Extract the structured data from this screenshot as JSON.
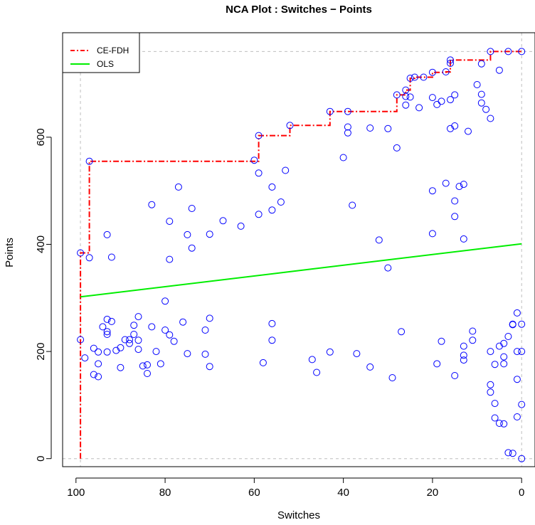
{
  "chart_data": {
    "type": "scatter",
    "title": "NCA Plot : Switches − Points",
    "xlabel": "Switches",
    "ylabel": "Points",
    "xlim": [
      103,
      -3
    ],
    "ylim": [
      -15,
      795
    ],
    "x_reversed": true,
    "x_ticks": [
      100,
      80,
      60,
      40,
      20,
      0
    ],
    "y_ticks": [
      0,
      200,
      400,
      600
    ],
    "grid": false,
    "reference_lines": {
      "x": [
        99,
        0
      ],
      "y": [
        0,
        760
      ]
    },
    "legend": {
      "position": "top-left",
      "entries": [
        "CE-FDH",
        "OLS"
      ]
    },
    "colors": {
      "points": "#0000ff",
      "ce_fdh": "#ff0000",
      "ols": "#00ee00",
      "reference": "#bebebe"
    },
    "series": [
      {
        "name": "",
        "kind": "points",
        "points": [
          [
            99,
            384
          ],
          [
            99,
            222
          ],
          [
            97,
            555
          ],
          [
            97,
            375
          ],
          [
            98,
            188
          ],
          [
            93,
            418
          ],
          [
            92,
            376
          ],
          [
            96,
            206
          ],
          [
            96,
            157
          ],
          [
            95,
            153
          ],
          [
            95,
            177
          ],
          [
            95,
            199
          ],
          [
            94,
            246
          ],
          [
            93,
            260
          ],
          [
            93,
            237
          ],
          [
            93,
            232
          ],
          [
            92,
            256
          ],
          [
            93,
            199
          ],
          [
            91,
            202
          ],
          [
            90,
            170
          ],
          [
            90,
            207
          ],
          [
            89,
            222
          ],
          [
            88,
            222
          ],
          [
            88,
            215
          ],
          [
            87,
            232
          ],
          [
            87,
            249
          ],
          [
            86,
            265
          ],
          [
            86,
            221
          ],
          [
            86,
            204
          ],
          [
            85,
            173
          ],
          [
            84,
            175
          ],
          [
            84,
            159
          ],
          [
            83,
            246
          ],
          [
            83,
            474
          ],
          [
            82,
            200
          ],
          [
            81,
            177
          ],
          [
            80,
            294
          ],
          [
            80,
            240
          ],
          [
            79,
            231
          ],
          [
            79,
            443
          ],
          [
            79,
            372
          ],
          [
            78,
            219
          ],
          [
            77,
            507
          ],
          [
            76,
            255
          ],
          [
            75,
            196
          ],
          [
            75,
            418
          ],
          [
            74,
            467
          ],
          [
            74,
            393
          ],
          [
            71,
            240
          ],
          [
            71,
            195
          ],
          [
            70,
            262
          ],
          [
            70,
            172
          ],
          [
            70,
            419
          ],
          [
            67,
            444
          ],
          [
            63,
            434
          ],
          [
            60,
            557
          ],
          [
            59,
            603
          ],
          [
            59,
            533
          ],
          [
            59,
            456
          ],
          [
            58,
            179
          ],
          [
            56,
            507
          ],
          [
            56,
            464
          ],
          [
            56,
            252
          ],
          [
            56,
            221
          ],
          [
            54,
            479
          ],
          [
            53,
            538
          ],
          [
            52,
            622
          ],
          [
            47,
            185
          ],
          [
            46,
            161
          ],
          [
            43,
            648
          ],
          [
            43,
            199
          ],
          [
            40,
            562
          ],
          [
            39,
            648
          ],
          [
            39,
            619
          ],
          [
            39,
            608
          ],
          [
            38,
            473
          ],
          [
            37,
            196
          ],
          [
            34,
            617
          ],
          [
            34,
            171
          ],
          [
            32,
            408
          ],
          [
            30,
            616
          ],
          [
            30,
            356
          ],
          [
            29,
            151
          ],
          [
            28,
            679
          ],
          [
            28,
            580
          ],
          [
            27,
            237
          ],
          [
            26,
            688
          ],
          [
            26,
            676
          ],
          [
            26,
            660
          ],
          [
            25,
            710
          ],
          [
            25,
            675
          ],
          [
            24,
            712
          ],
          [
            23,
            655
          ],
          [
            22,
            712
          ],
          [
            20,
            721
          ],
          [
            20,
            674
          ],
          [
            20,
            500
          ],
          [
            20,
            420
          ],
          [
            19,
            661
          ],
          [
            19,
            177
          ],
          [
            18,
            667
          ],
          [
            18,
            219
          ],
          [
            17,
            722
          ],
          [
            17,
            514
          ],
          [
            16,
            744
          ],
          [
            16,
            738
          ],
          [
            16,
            670
          ],
          [
            16,
            616
          ],
          [
            15,
            679
          ],
          [
            15,
            621
          ],
          [
            15,
            481
          ],
          [
            15,
            452
          ],
          [
            15,
            155
          ],
          [
            14,
            508
          ],
          [
            13,
            512
          ],
          [
            13,
            410
          ],
          [
            13,
            210
          ],
          [
            13,
            193
          ],
          [
            13,
            184
          ],
          [
            12,
            611
          ],
          [
            11,
            238
          ],
          [
            11,
            221
          ],
          [
            10,
            698
          ],
          [
            9,
            737
          ],
          [
            9,
            680
          ],
          [
            9,
            664
          ],
          [
            8,
            652
          ],
          [
            7,
            760
          ],
          [
            7,
            635
          ],
          [
            7,
            200
          ],
          [
            7,
            138
          ],
          [
            7,
            124
          ],
          [
            6,
            176
          ],
          [
            6,
            103
          ],
          [
            6,
            76
          ],
          [
            5,
            725
          ],
          [
            5,
            210
          ],
          [
            5,
            66
          ],
          [
            4,
            215
          ],
          [
            4,
            190
          ],
          [
            4,
            177
          ],
          [
            4,
            65
          ],
          [
            3,
            760
          ],
          [
            3,
            228
          ],
          [
            3,
            11
          ],
          [
            2,
            250
          ],
          [
            2,
            251
          ],
          [
            2,
            10
          ],
          [
            1,
            272
          ],
          [
            1,
            200
          ],
          [
            1,
            148
          ],
          [
            1,
            78
          ],
          [
            0,
            760
          ],
          [
            0,
            251
          ],
          [
            0,
            200
          ],
          [
            0,
            101
          ],
          [
            0,
            0
          ]
        ]
      },
      {
        "name": "CE-FDH",
        "kind": "step",
        "points": [
          [
            99,
            0
          ],
          [
            99,
            384
          ],
          [
            97,
            384
          ],
          [
            97,
            555
          ],
          [
            60,
            555
          ],
          [
            59,
            555
          ],
          [
            59,
            603
          ],
          [
            52,
            603
          ],
          [
            52,
            622
          ],
          [
            43,
            622
          ],
          [
            43,
            648
          ],
          [
            28,
            648
          ],
          [
            28,
            679
          ],
          [
            26,
            679
          ],
          [
            26,
            688
          ],
          [
            25,
            688
          ],
          [
            25,
            710
          ],
          [
            24,
            710
          ],
          [
            24,
            712
          ],
          [
            20,
            712
          ],
          [
            20,
            721
          ],
          [
            17,
            721
          ],
          [
            17,
            722
          ],
          [
            16,
            722
          ],
          [
            16,
            744
          ],
          [
            7,
            744
          ],
          [
            7,
            760
          ],
          [
            0,
            760
          ]
        ]
      },
      {
        "name": "OLS",
        "kind": "line",
        "points": [
          [
            99,
            302
          ],
          [
            0,
            401
          ]
        ]
      }
    ]
  }
}
